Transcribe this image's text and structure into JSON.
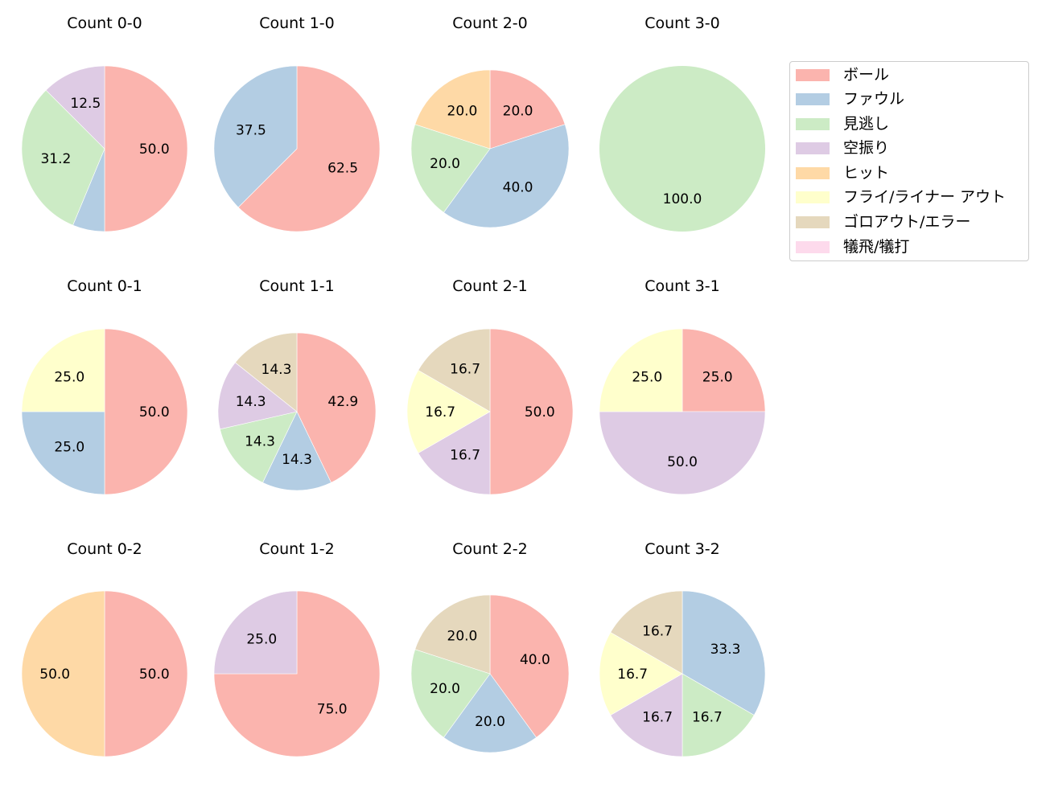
{
  "chart_data": {
    "type": "pie",
    "layout": {
      "rows": 3,
      "cols": 4,
      "start_angle": 90,
      "direction": "clockwise",
      "label_format": "%.1f"
    },
    "categories": [
      "ボール",
      "ファウル",
      "見逃し",
      "空振り",
      "ヒット",
      "フライ/ライナー アウト",
      "ゴロアウト/エラー",
      "犠飛/犠打"
    ],
    "colors": [
      "#FBB4AE",
      "#B3CDE3",
      "#CCEBC5",
      "#DECBE4",
      "#FED9A6",
      "#FFFFCC",
      "#E5D8BD",
      "#FDDAEC"
    ],
    "legend": {
      "position": "upper right (outside grid)",
      "entries": [
        "ボール",
        "ファウル",
        "見逃し",
        "空振り",
        "ヒット",
        "フライ/ライナー アウト",
        "ゴロアウト/エラー",
        "犠飛/犠打"
      ]
    },
    "pies": [
      {
        "title": "Count 0-0",
        "row": 0,
        "col": 0,
        "radius": 103,
        "slices": [
          {
            "category": "ボール",
            "value": 50.0,
            "label": "50.0"
          },
          {
            "category": "ファウル",
            "value": 6.25,
            "label": ""
          },
          {
            "category": "見逃し",
            "value": 31.25,
            "label": "31.2"
          },
          {
            "category": "空振り",
            "value": 12.5,
            "label": "12.5"
          }
        ]
      },
      {
        "title": "Count 1-0",
        "row": 0,
        "col": 1,
        "radius": 103,
        "slices": [
          {
            "category": "ボール",
            "value": 62.5,
            "label": "62.5"
          },
          {
            "category": "ファウル",
            "value": 37.5,
            "label": "37.5"
          }
        ]
      },
      {
        "title": "Count 2-0",
        "row": 0,
        "col": 2,
        "radius": 98,
        "slices": [
          {
            "category": "ボール",
            "value": 20.0,
            "label": "20.0"
          },
          {
            "category": "ファウル",
            "value": 40.0,
            "label": "40.0"
          },
          {
            "category": "見逃し",
            "value": 20.0,
            "label": "20.0"
          },
          {
            "category": "ヒット",
            "value": 20.0,
            "label": "20.0"
          }
        ]
      },
      {
        "title": "Count 3-0",
        "row": 0,
        "col": 3,
        "radius": 103,
        "slices": [
          {
            "category": "見逃し",
            "value": 100.0,
            "label": "100.0"
          }
        ]
      },
      {
        "title": "Count 0-1",
        "row": 1,
        "col": 0,
        "radius": 103,
        "slices": [
          {
            "category": "ボール",
            "value": 50.0,
            "label": "50.0"
          },
          {
            "category": "ファウル",
            "value": 25.0,
            "label": "25.0"
          },
          {
            "category": "フライ/ライナー アウト",
            "value": 25.0,
            "label": "25.0"
          }
        ]
      },
      {
        "title": "Count 1-1",
        "row": 1,
        "col": 1,
        "radius": 98,
        "slices": [
          {
            "category": "ボール",
            "value": 42.857,
            "label": "42.9"
          },
          {
            "category": "ファウル",
            "value": 14.286,
            "label": "14.3"
          },
          {
            "category": "見逃し",
            "value": 14.286,
            "label": "14.3"
          },
          {
            "category": "空振り",
            "value": 14.286,
            "label": "14.3"
          },
          {
            "category": "ゴロアウト/エラー",
            "value": 14.286,
            "label": "14.3"
          }
        ]
      },
      {
        "title": "Count 2-1",
        "row": 1,
        "col": 2,
        "radius": 103,
        "slices": [
          {
            "category": "ボール",
            "value": 50.0,
            "label": "50.0"
          },
          {
            "category": "空振り",
            "value": 16.667,
            "label": "16.7"
          },
          {
            "category": "フライ/ライナー アウト",
            "value": 16.667,
            "label": "16.7"
          },
          {
            "category": "ゴロアウト/エラー",
            "value": 16.667,
            "label": "16.7"
          }
        ]
      },
      {
        "title": "Count 3-1",
        "row": 1,
        "col": 3,
        "radius": 103,
        "slices": [
          {
            "category": "ボール",
            "value": 25.0,
            "label": "25.0"
          },
          {
            "category": "空振り",
            "value": 50.0,
            "label": "50.0"
          },
          {
            "category": "フライ/ライナー アウト",
            "value": 25.0,
            "label": "25.0"
          }
        ]
      },
      {
        "title": "Count 0-2",
        "row": 2,
        "col": 0,
        "radius": 103,
        "slices": [
          {
            "category": "ボール",
            "value": 50.0,
            "label": "50.0"
          },
          {
            "category": "ヒット",
            "value": 50.0,
            "label": "50.0"
          }
        ]
      },
      {
        "title": "Count 1-2",
        "row": 2,
        "col": 1,
        "radius": 103,
        "slices": [
          {
            "category": "ボール",
            "value": 75.0,
            "label": "75.0"
          },
          {
            "category": "空振り",
            "value": 25.0,
            "label": "25.0"
          }
        ]
      },
      {
        "title": "Count 2-2",
        "row": 2,
        "col": 2,
        "radius": 98,
        "slices": [
          {
            "category": "ボール",
            "value": 40.0,
            "label": "40.0"
          },
          {
            "category": "ファウル",
            "value": 20.0,
            "label": "20.0"
          },
          {
            "category": "見逃し",
            "value": 20.0,
            "label": "20.0"
          },
          {
            "category": "ゴロアウト/エラー",
            "value": 20.0,
            "label": "20.0"
          }
        ]
      },
      {
        "title": "Count 3-2",
        "row": 2,
        "col": 3,
        "radius": 103,
        "slices": [
          {
            "category": "ファウル",
            "value": 33.333,
            "label": "33.3"
          },
          {
            "category": "見逃し",
            "value": 16.667,
            "label": "16.7"
          },
          {
            "category": "空振り",
            "value": 16.667,
            "label": "16.7"
          },
          {
            "category": "フライ/ライナー アウト",
            "value": 16.667,
            "label": "16.7"
          },
          {
            "category": "ゴロアウト/エラー",
            "value": 16.667,
            "label": "16.7"
          }
        ]
      }
    ]
  }
}
